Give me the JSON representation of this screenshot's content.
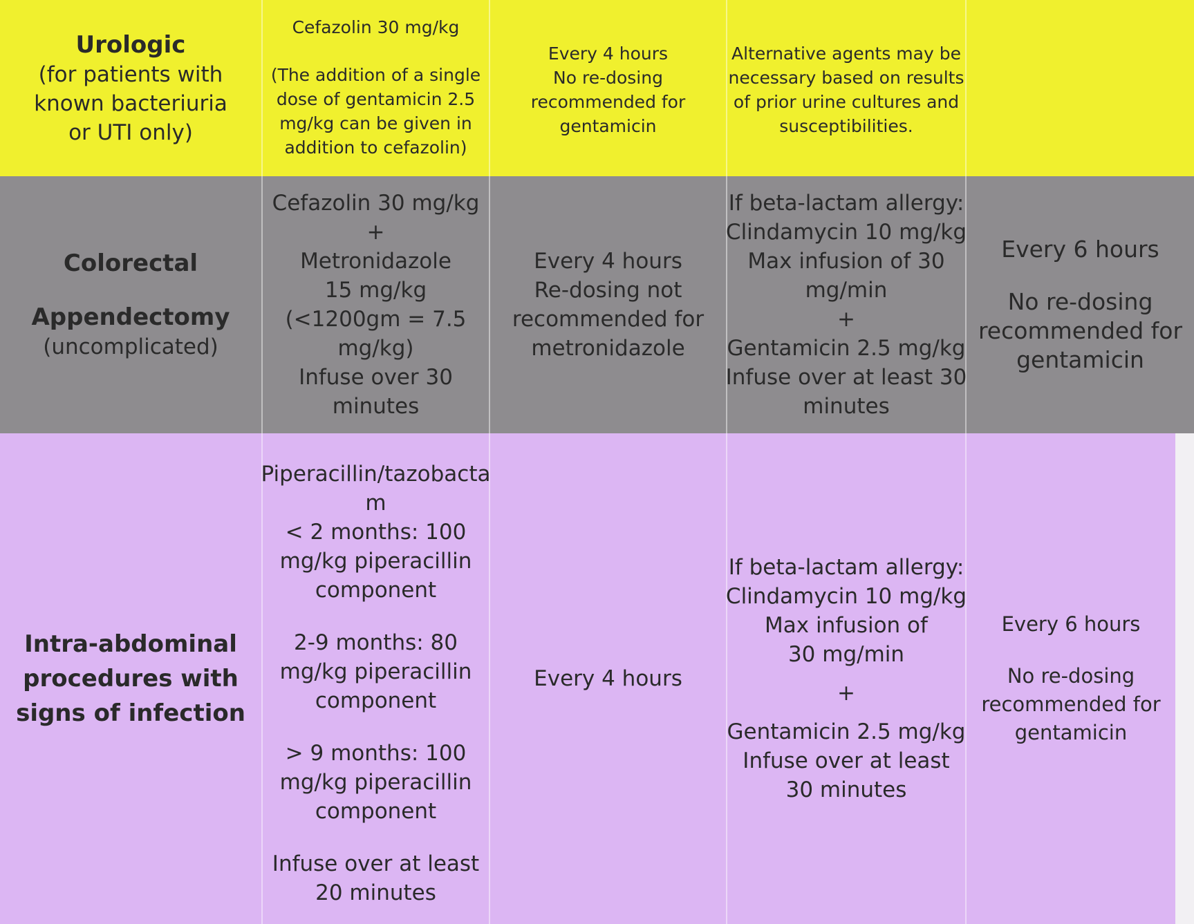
{
  "rows": [
    {
      "procedure": {
        "title": "Urologic",
        "note_lines": [
          "(for patients with",
          "known bacteriuria",
          "or UTI only)"
        ]
      },
      "agent_blocks": [
        [
          "Cefazolin 30 mg/kg"
        ],
        [
          "(The addition of a single",
          "dose of gentamicin 2.5",
          "mg/kg can be given in",
          "addition to cefazolin)"
        ]
      ],
      "redosing_lines": [
        "Every 4 hours",
        "No re-dosing",
        "recommended for",
        "gentamicin"
      ],
      "alternative_lines": [
        "Alternative agents may be",
        "necessary based on results",
        "of prior urine cultures and",
        "susceptibilities."
      ],
      "alt_redosing_blocks": []
    },
    {
      "procedure": {
        "title": "Colorectal",
        "title2": "Appendectomy",
        "note": "(uncomplicated)"
      },
      "agent_lines": [
        "Cefazolin 30 mg/kg",
        "+",
        "Metronidazole",
        "15 mg/kg",
        "(<1200gm = 7.5",
        "mg/kg)",
        "Infuse over 30",
        "minutes"
      ],
      "redosing_lines": [
        "Every 4 hours",
        "Re-dosing not",
        "recommended for",
        "metronidazole"
      ],
      "alternative_lines": [
        "If beta-lactam allergy:",
        "Clindamycin 10 mg/kg",
        "Max infusion of 30",
        "mg/min",
        "+",
        "Gentamicin 2.5 mg/kg",
        "Infuse over at least 30",
        "minutes"
      ],
      "alt_redosing_blocks": [
        [
          "Every 6 hours"
        ],
        [
          "No re-dosing",
          "recommended for",
          "gentamicin"
        ]
      ]
    },
    {
      "procedure": {
        "title_lines": [
          "Intra-abdominal",
          "procedures with",
          "signs of infection"
        ]
      },
      "agent_blocks": [
        [
          "Piperacillin/tazobacta",
          "m",
          "< 2 months: 100",
          "mg/kg piperacillin",
          "component"
        ],
        [
          "2-9 months: 80",
          "mg/kg piperacillin",
          "component"
        ],
        [
          "> 9 months: 100",
          "mg/kg piperacillin",
          "component"
        ],
        [
          "Infuse over at least",
          "20 minutes"
        ]
      ],
      "redosing_lines": [
        "Every 4 hours"
      ],
      "alternative_blocks": [
        [
          "If beta-lactam allergy:",
          "Clindamycin 10 mg/kg",
          "Max infusion of",
          "30 mg/min"
        ],
        [
          "+"
        ],
        [
          "Gentamicin 2.5 mg/kg",
          "Infuse over at least",
          "30 minutes"
        ]
      ],
      "alt_redosing_blocks": [
        [
          "Every 6 hours"
        ],
        [
          "No re-dosing",
          "recommended for",
          "gentamicin"
        ]
      ]
    }
  ]
}
